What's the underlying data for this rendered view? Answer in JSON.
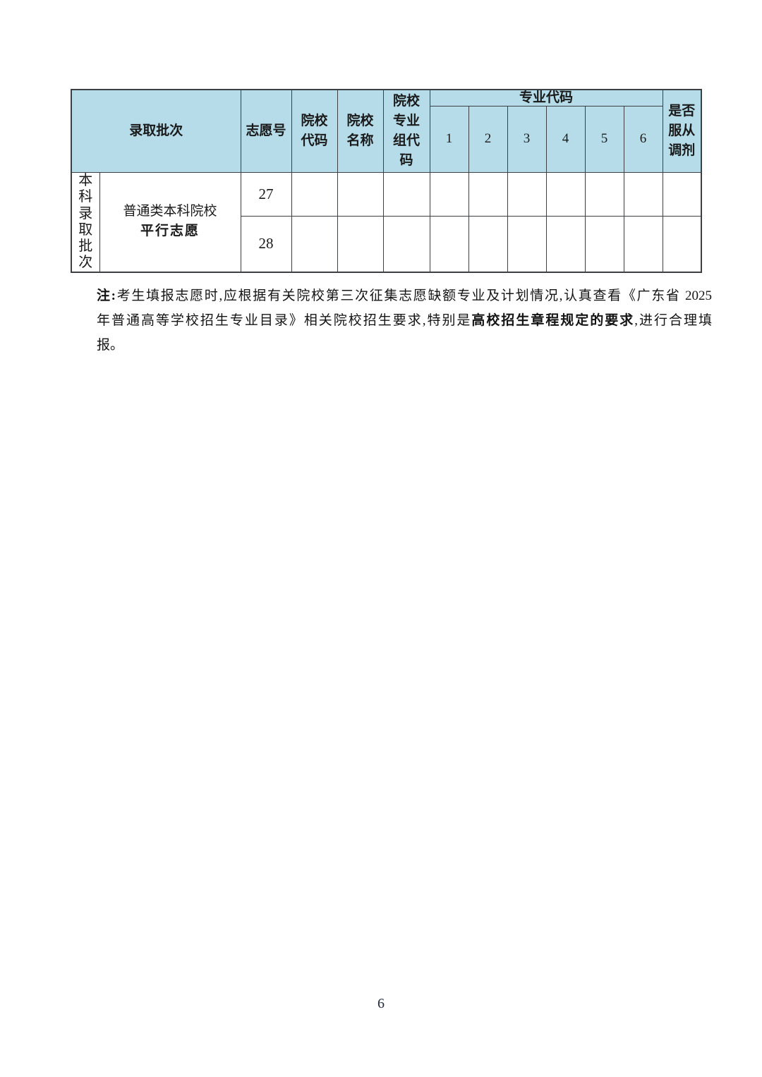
{
  "colors": {
    "header_bg": "#b5dce8",
    "border": "#3d4043"
  },
  "table": {
    "header": {
      "admission_batch": "录取批次",
      "volunteer_no": "志愿号",
      "college_code": "院校\n代码",
      "college_name": "院校\n名称",
      "college_group_code": "院校\n专业\n组代\n码",
      "major_code": "专业代码",
      "major_code_slots": [
        "1",
        "2",
        "3",
        "4",
        "5",
        "6"
      ],
      "obey_adjustment": "是否\n服从\n调剂"
    },
    "body": {
      "batch_vertical": "本\n科\n录\n取\n批\n次",
      "batch_line1": "普通类本科院校",
      "batch_line2": "平行志愿",
      "rows": [
        {
          "volunteer_no": "27"
        },
        {
          "volunteer_no": "28"
        }
      ]
    }
  },
  "note": {
    "lines": [
      [
        {
          "text": "注:",
          "bold": true
        },
        {
          "text": "考生填报志愿时,应根据有关院校第三次征集志愿缺额专业及计划情况,认真查看《广东省 2025",
          "bold": false
        }
      ],
      [
        {
          "text": "年普通高等学校招生专业目录》相关院校招生要求,特别是",
          "bold": false
        },
        {
          "text": "高校招生章程规定的要求",
          "bold": true
        },
        {
          "text": ",进行合理填",
          "bold": false
        }
      ],
      [
        {
          "text": "报。",
          "bold": false
        }
      ]
    ]
  },
  "footer": {
    "page_number": "6"
  }
}
